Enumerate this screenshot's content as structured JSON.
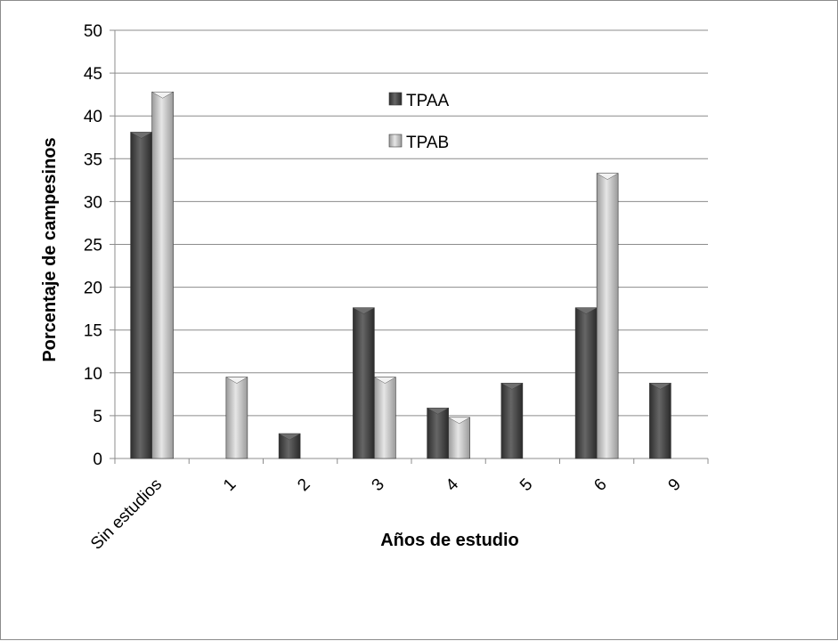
{
  "chart_data": {
    "type": "bar",
    "title": "",
    "xlabel": "Años de estudio",
    "ylabel": "Porcentaje de campesinos",
    "categories": [
      "Sin estudios",
      "1",
      "2",
      "3",
      "4",
      "5",
      "6",
      "9"
    ],
    "series": [
      {
        "name": "TPAA",
        "color": "#4a4a4a",
        "values": [
          38.1,
          0,
          2.9,
          17.6,
          5.9,
          8.8,
          17.6,
          8.8
        ]
      },
      {
        "name": "TPAB",
        "color": "#b8b8b8",
        "values": [
          42.8,
          9.5,
          0,
          9.5,
          4.8,
          0,
          33.3,
          0
        ]
      }
    ],
    "ylim": [
      0,
      50
    ],
    "yticks": [
      "0",
      "5",
      "10",
      "15",
      "20",
      "25",
      "30",
      "35",
      "40",
      "45",
      "50"
    ],
    "grid": true,
    "legend_position": "top-center inside plot",
    "bar_style": "3d-beveled"
  }
}
